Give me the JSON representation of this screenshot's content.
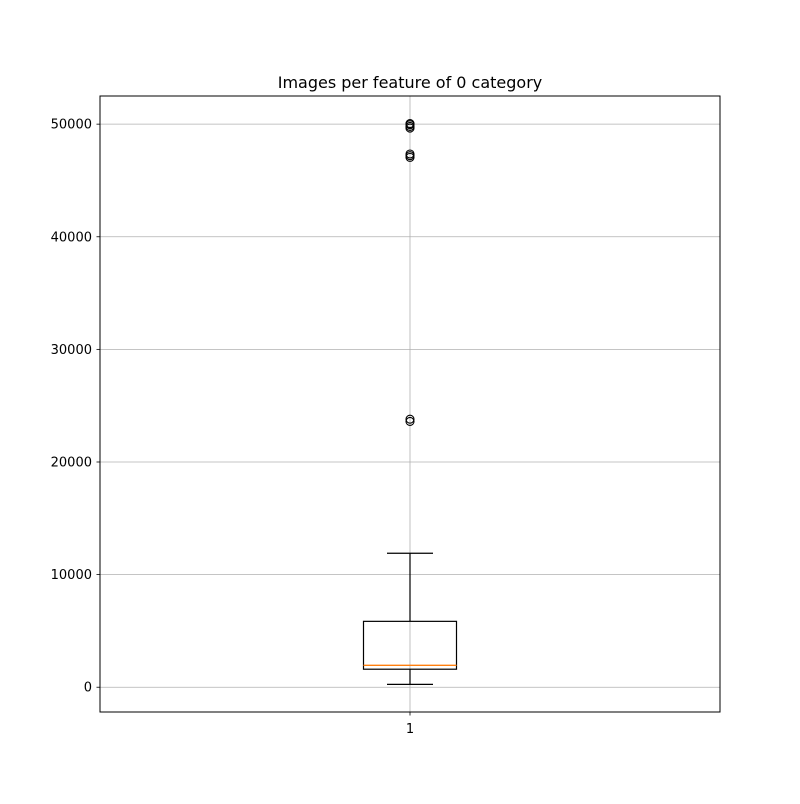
{
  "chart_data": {
    "type": "boxplot",
    "title": "Images per feature of 0 category",
    "xlabel": "",
    "ylabel": "",
    "categories": [
      "1"
    ],
    "ylim": [
      -2200,
      52500
    ],
    "yticks": [
      0,
      10000,
      20000,
      30000,
      40000,
      50000
    ],
    "ytick_labels": [
      "0",
      "10000",
      "20000",
      "30000",
      "40000",
      "50000"
    ],
    "grid": true,
    "boxes": [
      {
        "category": "1",
        "whisker_low": 250,
        "q1": 1600,
        "median": 1950,
        "q3": 5850,
        "whisker_high": 11900,
        "outliers": [
          23600,
          23800,
          47050,
          47200,
          47350,
          49650,
          49800,
          49950,
          50050
        ]
      }
    ],
    "colors": {
      "box": "#000000",
      "median": "#ff7f0e",
      "grid": "#b0b0b0",
      "outlier": "#000000"
    }
  }
}
